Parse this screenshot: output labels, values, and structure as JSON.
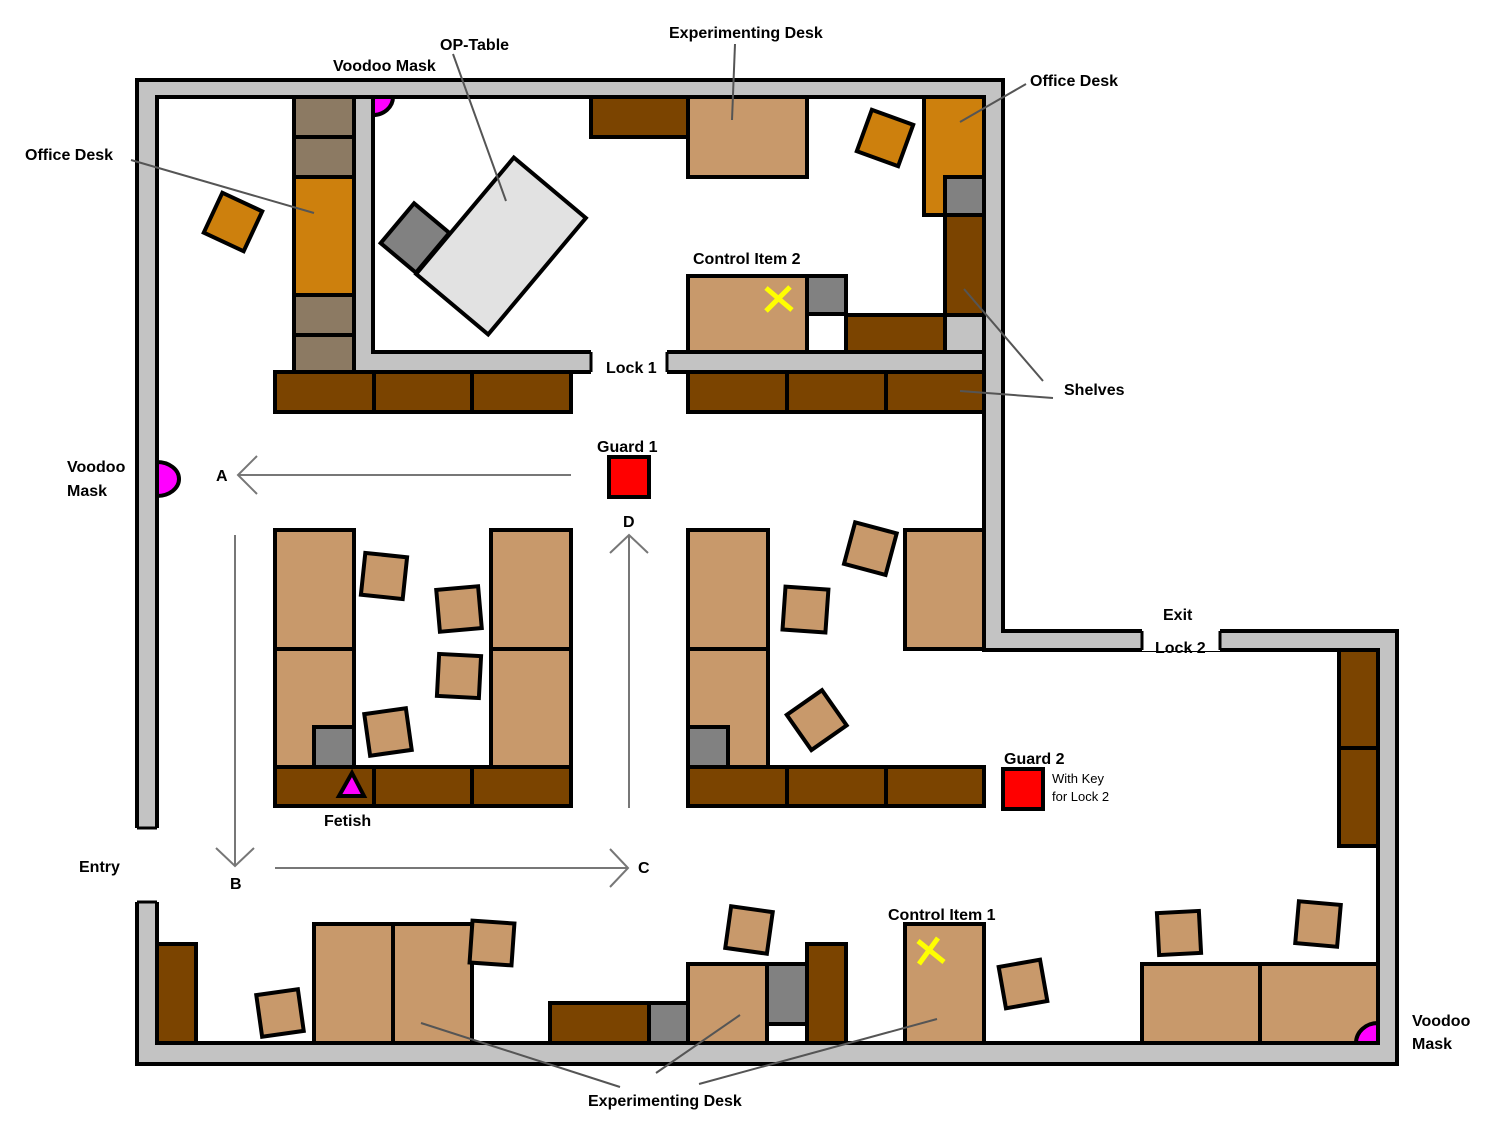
{
  "labels": {
    "voodoo_mask_top": "Voodoo Mask",
    "op_table": "OP-Table",
    "experimenting_desk_top": "Experimenting Desk",
    "office_desk_right": "Office Desk",
    "office_desk_left": "Office Desk",
    "control_item_2": "Control Item 2",
    "lock_1": "Lock 1",
    "shelves": "Shelves",
    "voodoo_mask_left_1": "Voodoo",
    "voodoo_mask_left_2": "Mask",
    "guard_1": "Guard 1",
    "exit": "Exit",
    "lock_2": "Lock 2",
    "guard_2": "Guard 2",
    "guard_2_note_1": "With Key",
    "guard_2_note_2": "for Lock 2",
    "fetish": "Fetish",
    "entry": "Entry",
    "control_item_1": "Control Item 1",
    "voodoo_mask_right_1": "Voodoo",
    "voodoo_mask_right_2": "Mask",
    "experimenting_desk_bottom": "Experimenting Desk"
  },
  "patrol_route": {
    "points": [
      "A",
      "B",
      "C",
      "D"
    ]
  },
  "colors": {
    "wall": "#c3c3c3",
    "desk": "#c8996b",
    "shelf": "#7b4400",
    "office_desk": "#cd800d",
    "guard": "#ff0000",
    "voodoo_mask": "#ff00ff",
    "control_item_marker": "#ffff00"
  }
}
